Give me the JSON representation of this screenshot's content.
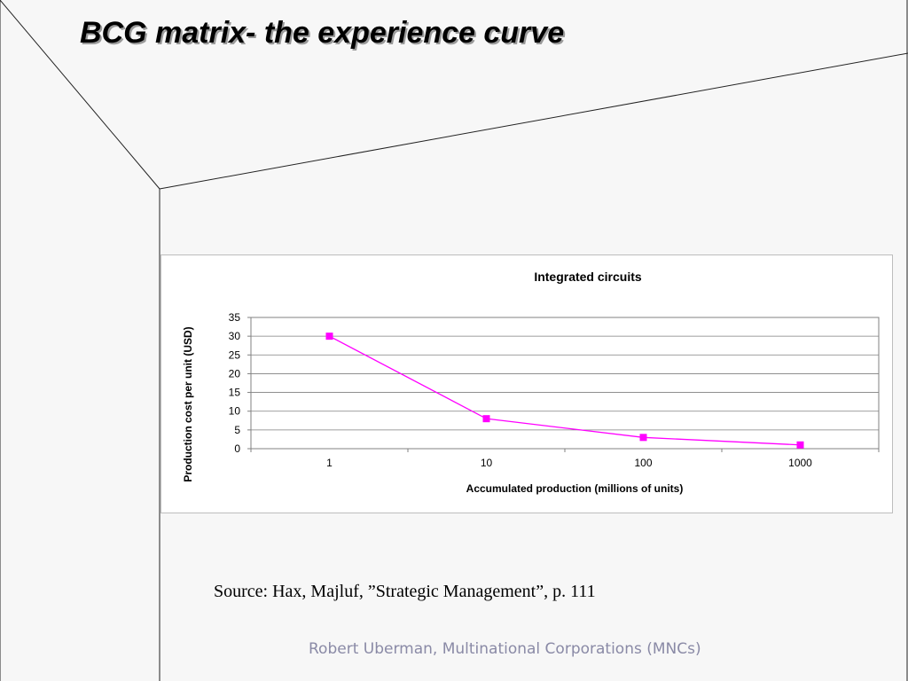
{
  "slide": {
    "title": "BCG matrix-  the experience curve",
    "source": "Source: Hax, Majluf, ”Strategic Management”, p. 111",
    "footer": "Robert Uberman, Multinational Corporations (MNCs)"
  },
  "chart_data": {
    "type": "line",
    "title": "Integrated circuits",
    "xlabel": "Accumulated production (millions of units)",
    "ylabel": "Production cost per unit (USD)",
    "x_scale": "log",
    "categories": [
      "1",
      "10",
      "100",
      "1000"
    ],
    "x": [
      1,
      10,
      100,
      1000
    ],
    "series": [
      {
        "values": [
          30,
          8,
          3,
          1
        ],
        "color": "#ff00ff"
      }
    ],
    "ylim": [
      0,
      35
    ],
    "yticks": [
      0,
      5,
      10,
      15,
      20,
      25,
      30,
      35
    ],
    "grid": true,
    "legend": "none",
    "colors": {
      "line": "#ff00ff",
      "marker": "#ff00ff",
      "grid": "#7f7f7f",
      "axis": "#808080"
    }
  }
}
